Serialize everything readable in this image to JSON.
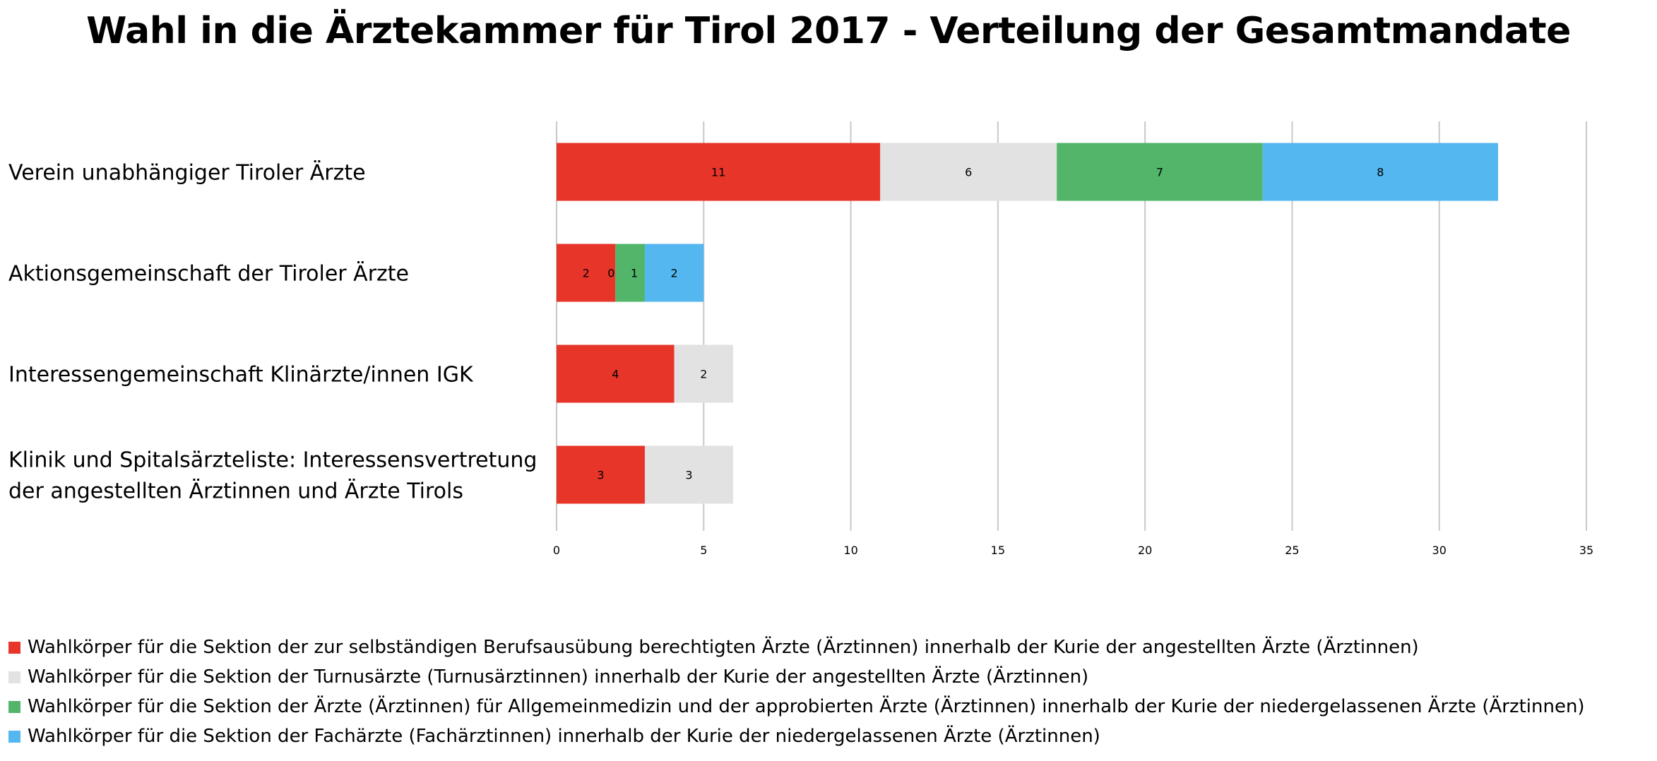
{
  "chart_data": {
    "type": "bar",
    "orientation": "horizontal",
    "stacked": true,
    "title": "Wahl in die Ärztekammer für Tirol 2017 - Verteilung der Gesamtmandate",
    "categories": [
      [
        "Verein unabhängiger Tiroler Ärzte"
      ],
      [
        "Aktionsgemeinschaft der Tiroler Ärzte"
      ],
      [
        "Interessengemeinschaft Klinärzte/innen IGK"
      ],
      [
        "Klinik und Spitalsärzteliste: Interessensvertretung",
        "der angestellten Ärztinnen und Ärzte Tirols"
      ]
    ],
    "series": [
      {
        "name": "Wahlkörper für die Sektion der zur selbständigen Berufsausübung berechtigten Ärzte (Ärztinnen) innerhalb der Kurie der angestellten Ärzte (Ärztinnen)",
        "color": "#e8352a",
        "values": [
          11,
          2,
          4,
          3
        ]
      },
      {
        "name": "Wahlkörper für die Sektion der Turnusärzte (Turnusärztinnen) innerhalb der Kurie der angestellten Ärzte (Ärztinnen)",
        "color": "#e2e2e2",
        "values": [
          6,
          0,
          2,
          3
        ]
      },
      {
        "name": "Wahlkörper für die Sektion der Ärzte (Ärztinnen) für Allgemeinmedizin und der approbierten Ärzte (Ärztinnen) innerhalb der Kurie der niedergelassenen Ärzte (Ärztinnen)",
        "color": "#52b56a",
        "values": [
          7,
          1,
          null,
          null
        ]
      },
      {
        "name": "Wahlkörper für die Sektion der Fachärzte (Fachärztinnen) innerhalb der Kurie der niedergelassenen Ärzte (Ärztinnen)",
        "color": "#55b7f0",
        "values": [
          8,
          2,
          null,
          null
        ]
      }
    ],
    "xlim": [
      0,
      35
    ],
    "xticks": [
      0,
      5,
      10,
      15,
      20,
      25,
      30,
      35
    ],
    "xlabel": "",
    "ylabel": "",
    "grid": "vertical",
    "legend": "bottom"
  }
}
